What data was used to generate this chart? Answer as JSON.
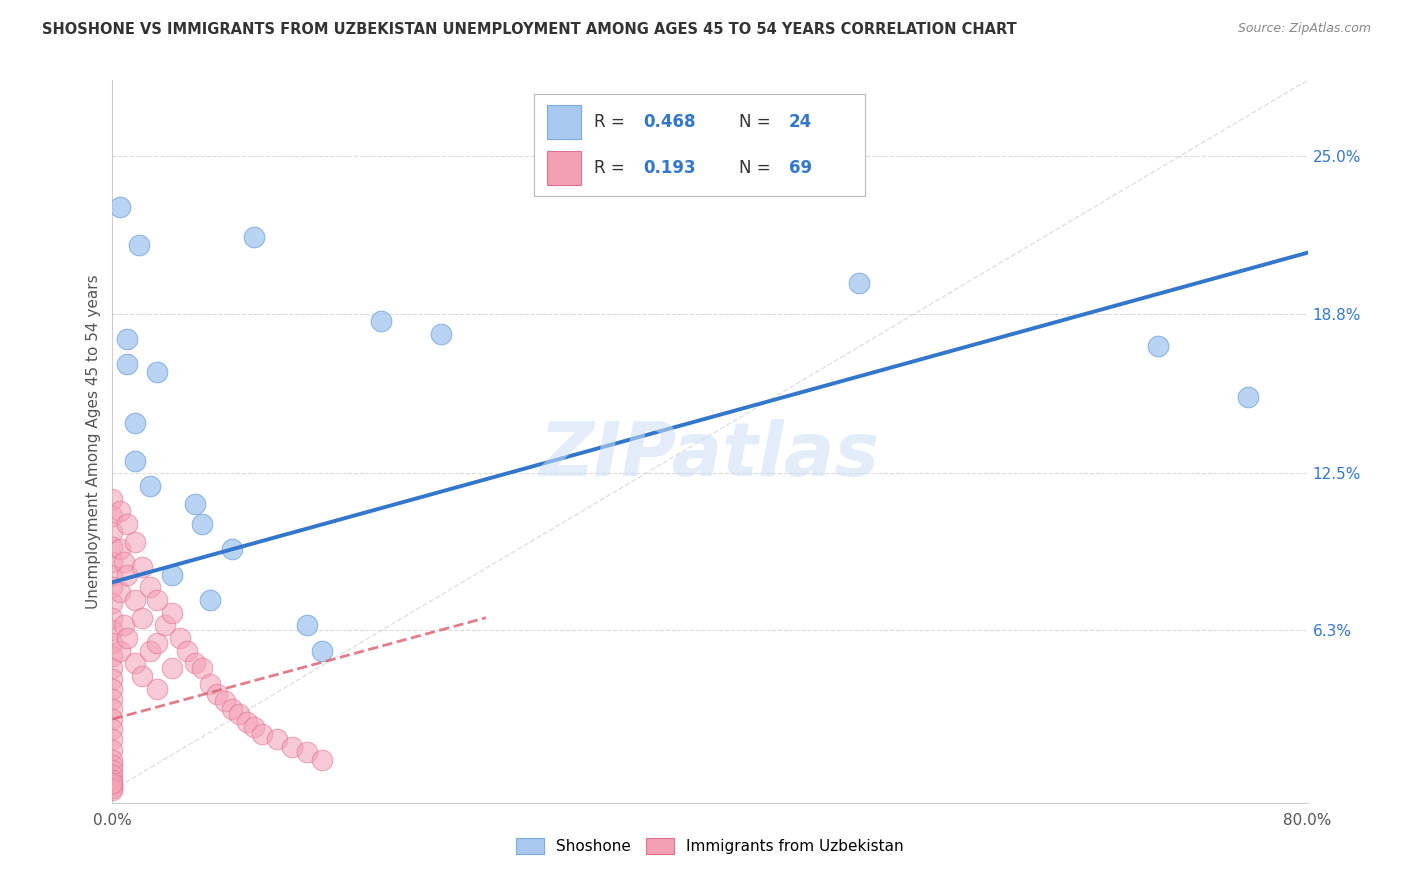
{
  "title": "SHOSHONE VS IMMIGRANTS FROM UZBEKISTAN UNEMPLOYMENT AMONG AGES 45 TO 54 YEARS CORRELATION CHART",
  "source": "Source: ZipAtlas.com",
  "ylabel": "Unemployment Among Ages 45 to 54 years",
  "xlim": [
    0.0,
    0.8
  ],
  "ylim": [
    -0.005,
    0.28
  ],
  "xticks": [
    0.0,
    0.2,
    0.4,
    0.6,
    0.8
  ],
  "xticklabels": [
    "0.0%",
    "",
    "",
    "",
    "80.0%"
  ],
  "ytick_positions": [
    0.063,
    0.125,
    0.188,
    0.25
  ],
  "ytick_labels": [
    "6.3%",
    "12.5%",
    "18.8%",
    "25.0%"
  ],
  "watermark": "ZIPatlas",
  "shoshone_color": "#a8c8f0",
  "uzbekistan_color": "#f4a0b4",
  "shoshone_edge_color": "#7aaade",
  "uzbekistan_edge_color": "#e07090",
  "shoshone_line_color": "#3377cc",
  "uzbekistan_line_color": "#dd6677",
  "grid_color": "#cccccc",
  "diag_color": "#cccccc",
  "shoshone_line_x": [
    0.0,
    0.8
  ],
  "shoshone_line_y": [
    0.082,
    0.212
  ],
  "uzbekistan_line_x": [
    0.0,
    0.25
  ],
  "uzbekistan_line_y": [
    0.028,
    0.068
  ],
  "shoshone_x": [
    0.005,
    0.018,
    0.095,
    0.01,
    0.01,
    0.015,
    0.015,
    0.025,
    0.03,
    0.055,
    0.08,
    0.18,
    0.22,
    0.5,
    0.7,
    0.76,
    0.06,
    0.04,
    0.065,
    0.13,
    0.14
  ],
  "shoshone_y": [
    0.23,
    0.215,
    0.218,
    0.178,
    0.168,
    0.145,
    0.13,
    0.12,
    0.165,
    0.113,
    0.095,
    0.185,
    0.18,
    0.2,
    0.175,
    0.155,
    0.105,
    0.085,
    0.075,
    0.065,
    0.055
  ],
  "uzbekistan_x": [
    0.0,
    0.0,
    0.0,
    0.0,
    0.0,
    0.0,
    0.0,
    0.0,
    0.0,
    0.0,
    0.0,
    0.0,
    0.0,
    0.0,
    0.0,
    0.0,
    0.0,
    0.0,
    0.0,
    0.0,
    0.0,
    0.0,
    0.0,
    0.0,
    0.0,
    0.0,
    0.0,
    0.0,
    0.0,
    0.0,
    0.005,
    0.005,
    0.005,
    0.005,
    0.008,
    0.008,
    0.01,
    0.01,
    0.01,
    0.015,
    0.015,
    0.015,
    0.02,
    0.02,
    0.02,
    0.025,
    0.025,
    0.03,
    0.03,
    0.03,
    0.035,
    0.04,
    0.04,
    0.045,
    0.05,
    0.055,
    0.06,
    0.065,
    0.07,
    0.075,
    0.08,
    0.085,
    0.09,
    0.095,
    0.1,
    0.11,
    0.12,
    0.13,
    0.14
  ],
  "uzbekistan_y": [
    0.115,
    0.108,
    0.102,
    0.096,
    0.09,
    0.085,
    0.08,
    0.074,
    0.068,
    0.063,
    0.058,
    0.053,
    0.048,
    0.044,
    0.04,
    0.036,
    0.032,
    0.028,
    0.024,
    0.02,
    0.016,
    0.012,
    0.01,
    0.008,
    0.006,
    0.004,
    0.002,
    0.0,
    0.001,
    0.003,
    0.11,
    0.095,
    0.078,
    0.055,
    0.09,
    0.065,
    0.105,
    0.085,
    0.06,
    0.098,
    0.075,
    0.05,
    0.088,
    0.068,
    0.045,
    0.08,
    0.055,
    0.075,
    0.058,
    0.04,
    0.065,
    0.07,
    0.048,
    0.06,
    0.055,
    0.05,
    0.048,
    0.042,
    0.038,
    0.035,
    0.032,
    0.03,
    0.027,
    0.025,
    0.022,
    0.02,
    0.017,
    0.015,
    0.012
  ]
}
